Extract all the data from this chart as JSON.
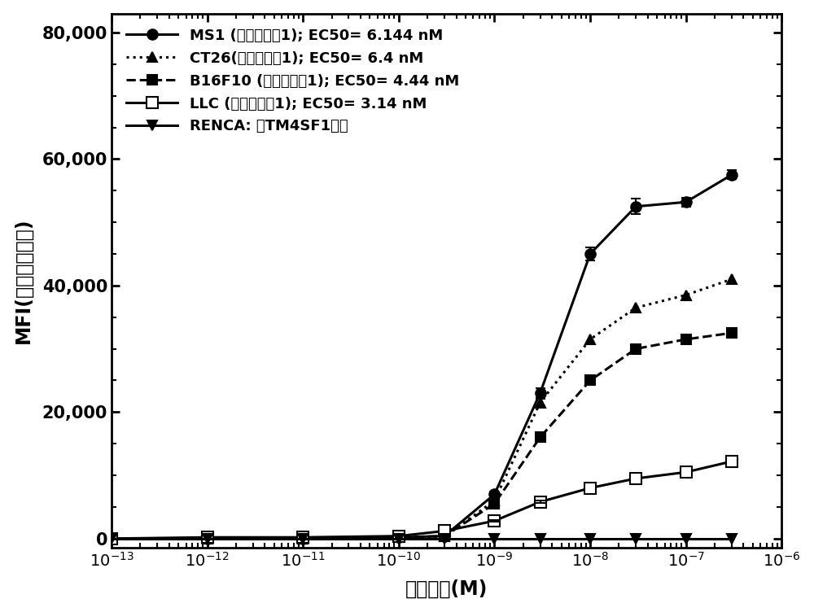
{
  "xlabel": "抗体浓度(M)",
  "ylabel": "MFI(平均荧光强度)",
  "background_color": "#ffffff",
  "yticks": [
    0,
    20000,
    40000,
    60000,
    80000
  ],
  "ytick_labels": [
    "0",
    "20,000",
    "40,000",
    "60,000",
    "80,000"
  ],
  "ylim": [
    -1500,
    83000
  ],
  "series": [
    {
      "key": "MS1",
      "label": "MS1 (示例性抗体1); EC50= 6.144 nM",
      "linestyle": "-",
      "marker": "o",
      "filled": true,
      "linewidth": 2.2,
      "markersize": 9,
      "x": [
        1e-13,
        1e-12,
        1e-11,
        1e-10,
        3e-10,
        1e-09,
        3e-09,
        1e-08,
        3e-08,
        1e-07,
        3e-07
      ],
      "y": [
        0,
        0,
        0,
        200,
        400,
        7000,
        23000,
        45000,
        52500,
        53200,
        57500
      ],
      "yerr": [
        0,
        0,
        0,
        0,
        0,
        400,
        800,
        1000,
        1200,
        700,
        700
      ]
    },
    {
      "key": "CT26",
      "label": "CT26(示例性抗体1); EC50= 6.4 nM",
      "linestyle": ":",
      "marker": "^",
      "filled": true,
      "linewidth": 2.2,
      "markersize": 9,
      "x": [
        1e-13,
        1e-12,
        1e-11,
        1e-10,
        3e-10,
        1e-09,
        3e-09,
        1e-08,
        3e-08,
        1e-07,
        3e-07
      ],
      "y": [
        0,
        0,
        0,
        200,
        300,
        6000,
        21500,
        31500,
        36500,
        38500,
        41000
      ],
      "yerr": [
        0,
        0,
        0,
        0,
        0,
        300,
        600,
        0,
        0,
        0,
        0
      ]
    },
    {
      "key": "B16F10",
      "label": "B16F10 (示例性抗体1); EC50= 4.44 nM",
      "linestyle": "--",
      "marker": "s",
      "filled": true,
      "linewidth": 2.2,
      "markersize": 9,
      "x": [
        1e-13,
        1e-12,
        1e-11,
        1e-10,
        3e-10,
        1e-09,
        3e-09,
        1e-08,
        3e-08,
        1e-07,
        3e-07
      ],
      "y": [
        0,
        0,
        0,
        200,
        400,
        5500,
        16000,
        25000,
        30000,
        31500,
        32500
      ],
      "yerr": [
        0,
        0,
        0,
        0,
        0,
        200,
        400,
        0,
        0,
        0,
        0
      ]
    },
    {
      "key": "LLC",
      "label": "LLC (示例性抗体1); EC50= 3.14 nM",
      "linestyle": "-",
      "marker": "s",
      "filled": false,
      "linewidth": 2.2,
      "markersize": 10,
      "x": [
        1e-13,
        1e-12,
        1e-11,
        1e-10,
        3e-10,
        1e-09,
        3e-09,
        1e-08,
        3e-08,
        1e-07,
        3e-07
      ],
      "y": [
        0,
        200,
        200,
        400,
        1200,
        2800,
        5800,
        8000,
        9500,
        10500,
        12200
      ],
      "yerr": [
        0,
        0,
        0,
        0,
        0,
        100,
        200,
        0,
        0,
        0,
        0
      ]
    },
    {
      "key": "RENCA",
      "label": "RENCA: 无TM4SF1表达",
      "linestyle": "-",
      "marker": "v",
      "filled": true,
      "linewidth": 2.2,
      "markersize": 9,
      "x": [
        1e-13,
        1e-12,
        1e-11,
        1e-10,
        3e-10,
        1e-09,
        3e-09,
        1e-08,
        3e-08,
        1e-07,
        3e-07
      ],
      "y": [
        0,
        0,
        0,
        0,
        0,
        0,
        0,
        0,
        0,
        0,
        0
      ],
      "yerr": [
        0,
        0,
        0,
        0,
        0,
        0,
        0,
        0,
        0,
        0,
        0
      ]
    }
  ]
}
